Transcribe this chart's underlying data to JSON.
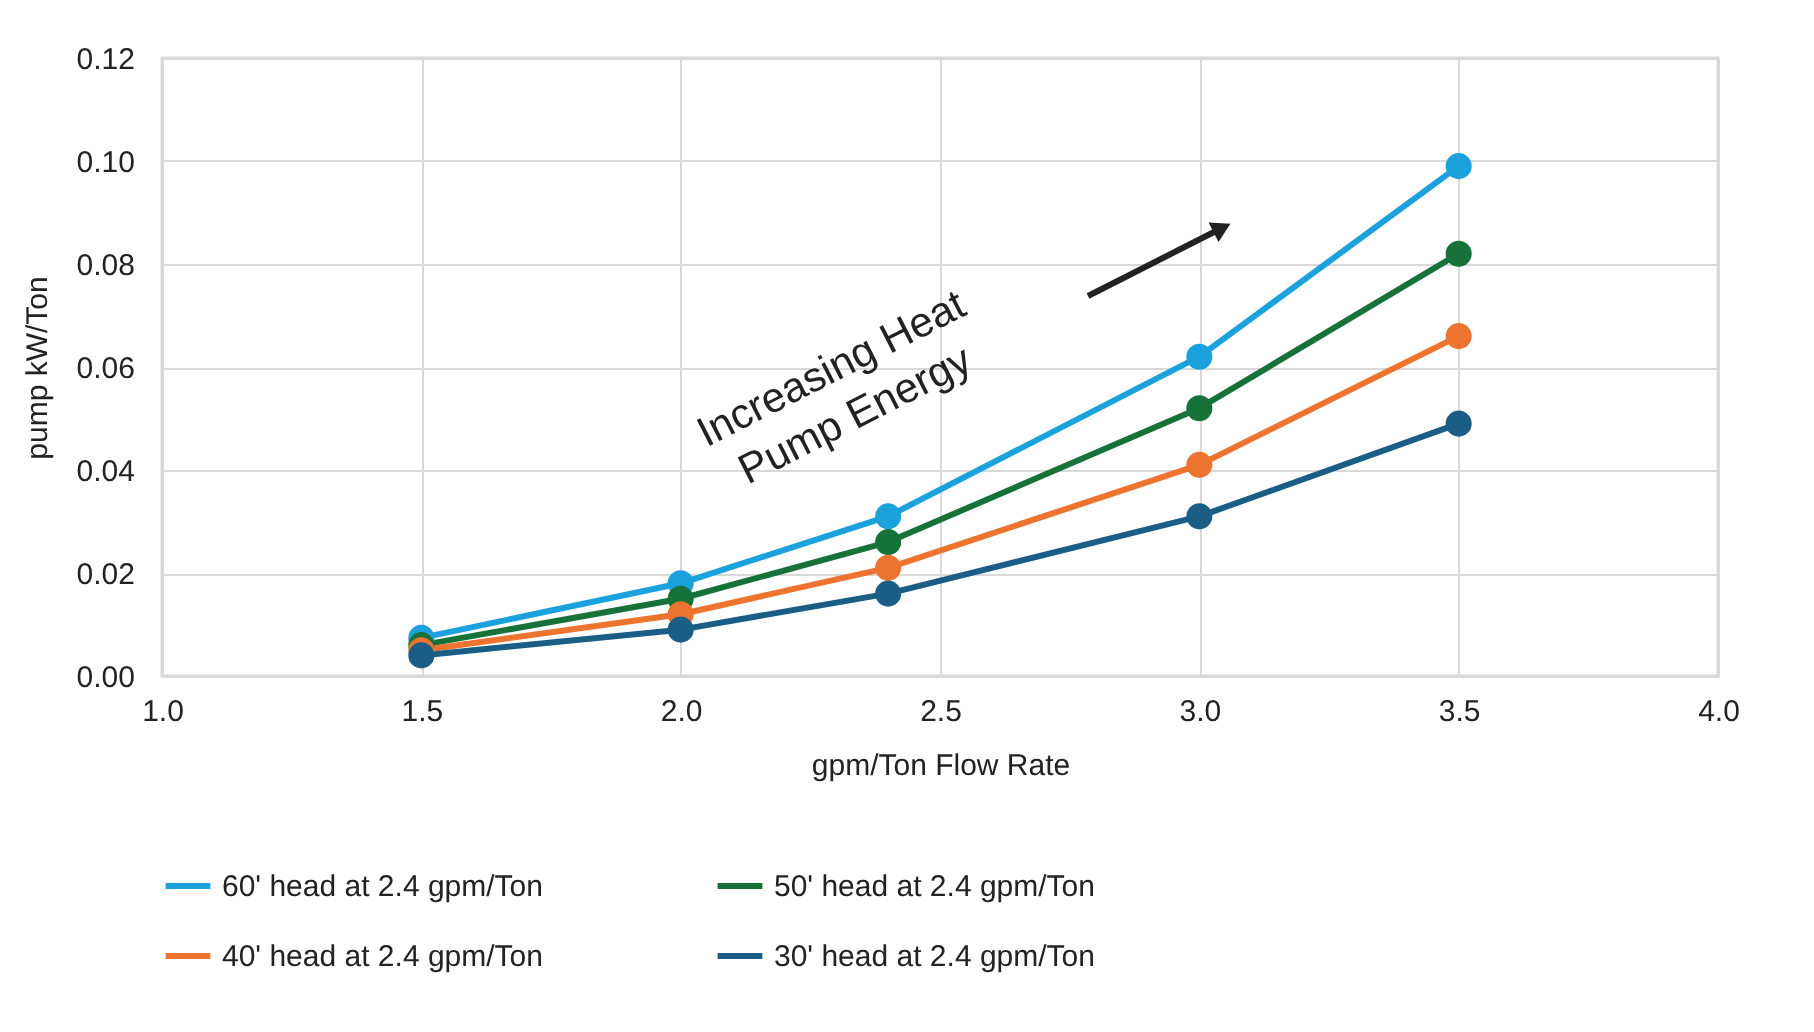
{
  "chart_data": {
    "type": "line",
    "xlabel": "gpm/Ton Flow Rate",
    "ylabel": "pump kW/Ton",
    "x": [
      1.5,
      2.0,
      2.4,
      3.0,
      3.5
    ],
    "series": [
      {
        "name": "60' head at 2.4 gpm/Ton",
        "color": "#1ba1dc",
        "values": [
          0.0074,
          0.018,
          0.031,
          0.062,
          0.099
        ]
      },
      {
        "name": "50' head at 2.4 gpm/Ton",
        "color": "#17723a",
        "values": [
          0.006,
          0.015,
          0.026,
          0.052,
          0.082
        ]
      },
      {
        "name": "40' head at 2.4 gpm/Ton",
        "color": "#ed7330",
        "values": [
          0.005,
          0.012,
          0.021,
          0.041,
          0.066
        ]
      },
      {
        "name": "30' head at 2.4 gpm/Ton",
        "color": "#1a5e86",
        "values": [
          0.004,
          0.009,
          0.016,
          0.031,
          0.049
        ]
      }
    ],
    "xlim": [
      1.0,
      4.0
    ],
    "xticks": [
      {
        "value": 1.0,
        "label": "1.0"
      },
      {
        "value": 1.5,
        "label": "1.5"
      },
      {
        "value": 2.0,
        "label": "2.0"
      },
      {
        "value": 2.5,
        "label": "2.5"
      },
      {
        "value": 3.0,
        "label": "3.0"
      },
      {
        "value": 3.5,
        "label": "3.5"
      },
      {
        "value": 4.0,
        "label": "4.0"
      }
    ],
    "ylim": [
      0,
      0.12
    ],
    "yticks": [
      {
        "value": 0,
        "label": "0.00"
      },
      {
        "value": 0.02,
        "label": "0.02"
      },
      {
        "value": 0.04,
        "label": "0.04"
      },
      {
        "value": 0.06,
        "label": "0.06"
      },
      {
        "value": 0.08,
        "label": "0.08"
      },
      {
        "value": 0.1,
        "label": "0.10"
      },
      {
        "value": 0.12,
        "label": "0.12"
      }
    ],
    "annotations": [
      "Increasing Heat\nPump Energy"
    ],
    "grid": true,
    "legend": "bottom",
    "marker": "circle",
    "line_style": "solid"
  }
}
